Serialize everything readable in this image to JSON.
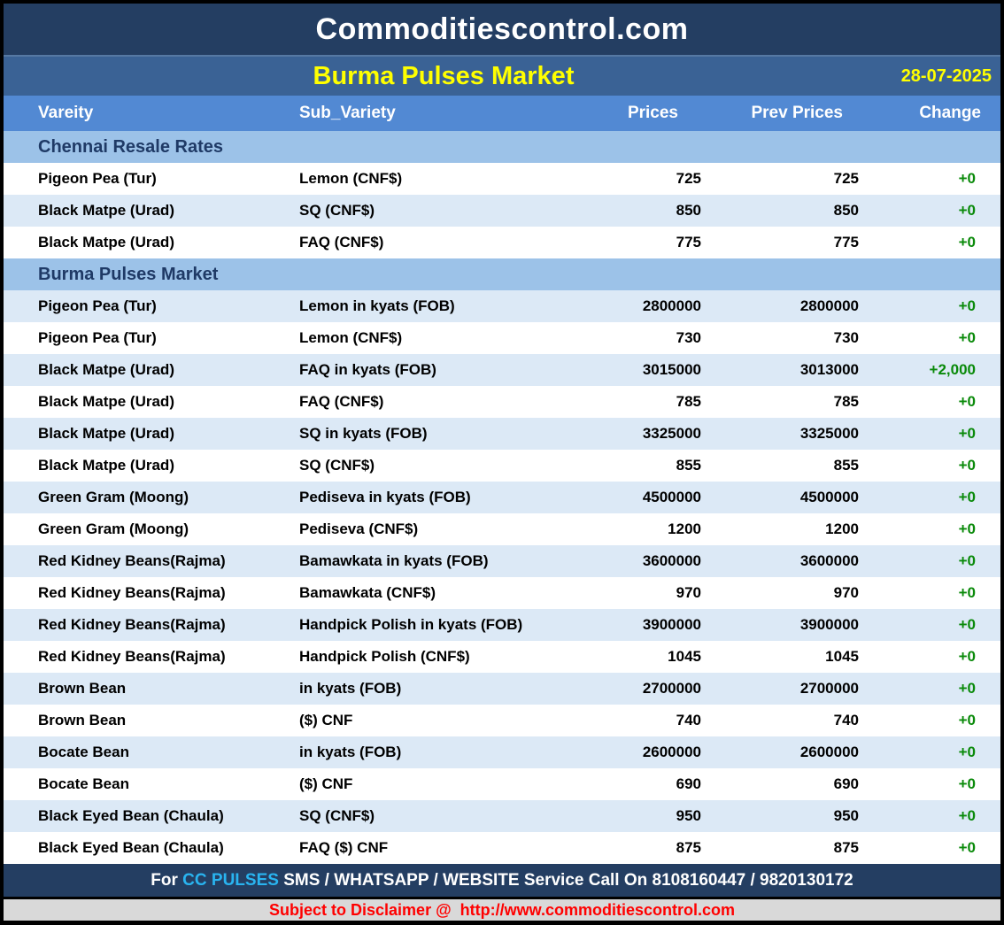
{
  "header": {
    "site_title": "Commoditiescontrol.com",
    "report_title": "Burma Pulses Market",
    "date": "28-07-2025"
  },
  "columns": [
    "Vareity",
    "Sub_Variety",
    "Prices",
    "Prev Prices",
    "Change"
  ],
  "rows": [
    {
      "section": "Chennai Resale Rates"
    },
    {
      "variety": "Pigeon Pea (Tur)",
      "sub_variety": "Lemon (CNF$)",
      "price": "725",
      "prev": "725",
      "change": "+0"
    },
    {
      "variety": "Black Matpe (Urad)",
      "sub_variety": "SQ (CNF$)",
      "price": "850",
      "prev": "850",
      "change": "+0"
    },
    {
      "variety": "Black Matpe (Urad)",
      "sub_variety": "FAQ (CNF$)",
      "price": "775",
      "prev": "775",
      "change": "+0"
    },
    {
      "section": "Burma Pulses Market"
    },
    {
      "variety": "Pigeon Pea (Tur)",
      "sub_variety": "Lemon in kyats (FOB)",
      "price": "2800000",
      "prev": "2800000",
      "change": "+0"
    },
    {
      "variety": "Pigeon Pea (Tur)",
      "sub_variety": "Lemon (CNF$)",
      "price": "730",
      "prev": "730",
      "change": "+0"
    },
    {
      "variety": "Black Matpe (Urad)",
      "sub_variety": "FAQ in kyats (FOB)",
      "price": "3015000",
      "prev": "3013000",
      "change": "+2,000"
    },
    {
      "variety": "Black Matpe (Urad)",
      "sub_variety": "FAQ (CNF$)",
      "price": "785",
      "prev": "785",
      "change": "+0"
    },
    {
      "variety": "Black Matpe (Urad)",
      "sub_variety": "SQ in kyats (FOB)",
      "price": "3325000",
      "prev": "3325000",
      "change": "+0"
    },
    {
      "variety": "Black Matpe (Urad)",
      "sub_variety": "SQ (CNF$)",
      "price": "855",
      "prev": "855",
      "change": "+0"
    },
    {
      "variety": "Green Gram (Moong)",
      "sub_variety": "Pediseva in kyats (FOB)",
      "price": "4500000",
      "prev": "4500000",
      "change": "+0"
    },
    {
      "variety": "Green Gram (Moong)",
      "sub_variety": "Pediseva (CNF$)",
      "price": "1200",
      "prev": "1200",
      "change": "+0"
    },
    {
      "variety": "Red Kidney Beans(Rajma)",
      "sub_variety": "Bamawkata in kyats (FOB)",
      "price": "3600000",
      "prev": "3600000",
      "change": "+0"
    },
    {
      "variety": "Red Kidney Beans(Rajma)",
      "sub_variety": "Bamawkata (CNF$)",
      "price": "970",
      "prev": "970",
      "change": "+0"
    },
    {
      "variety": "Red Kidney Beans(Rajma)",
      "sub_variety": "Handpick Polish in kyats (FOB)",
      "price": "3900000",
      "prev": "3900000",
      "change": "+0"
    },
    {
      "variety": "Red Kidney Beans(Rajma)",
      "sub_variety": "Handpick Polish (CNF$)",
      "price": "1045",
      "prev": "1045",
      "change": "+0"
    },
    {
      "variety": "Brown Bean",
      "sub_variety": "in kyats (FOB)",
      "price": "2700000",
      "prev": "2700000",
      "change": "+0"
    },
    {
      "variety": "Brown Bean",
      "sub_variety": "($) CNF",
      "price": "740",
      "prev": "740",
      "change": "+0"
    },
    {
      "variety": "Bocate Bean",
      "sub_variety": "in kyats (FOB)",
      "price": "2600000",
      "prev": "2600000",
      "change": "+0"
    },
    {
      "variety": "Bocate Bean",
      "sub_variety": "($) CNF",
      "price": "690",
      "prev": "690",
      "change": "+0"
    },
    {
      "variety": "Black Eyed Bean (Chaula)",
      "sub_variety": "SQ (CNF$)",
      "price": "950",
      "prev": "950",
      "change": "+0"
    },
    {
      "variety": "Black Eyed Bean (Chaula)",
      "sub_variety": "FAQ ($) CNF",
      "price": "875",
      "prev": "875",
      "change": "+0"
    }
  ],
  "footer": {
    "prefix": "For ",
    "highlight": "CC PULSES",
    "rest": " SMS / WHATSAPP / WEBSITE Service Call On 8108160447 / 9820130172"
  },
  "disclaimer": {
    "prefix": "Subject to Disclaimer @  ",
    "url": "http://www.commoditiescontrol.com"
  },
  "colors": {
    "navy": "#243e62",
    "subtitle_blue": "#3a6295",
    "column_header_blue": "#5289d3",
    "section_blue": "#9cc2e8",
    "row_tint": "#dce9f6",
    "change_green": "#0a8a0a",
    "title_yellow": "#ffff00",
    "highlight_cyan": "#29b4f0",
    "disclaimer_red": "#ff0000",
    "disclaimer_gray": "#d9d9d9"
  }
}
